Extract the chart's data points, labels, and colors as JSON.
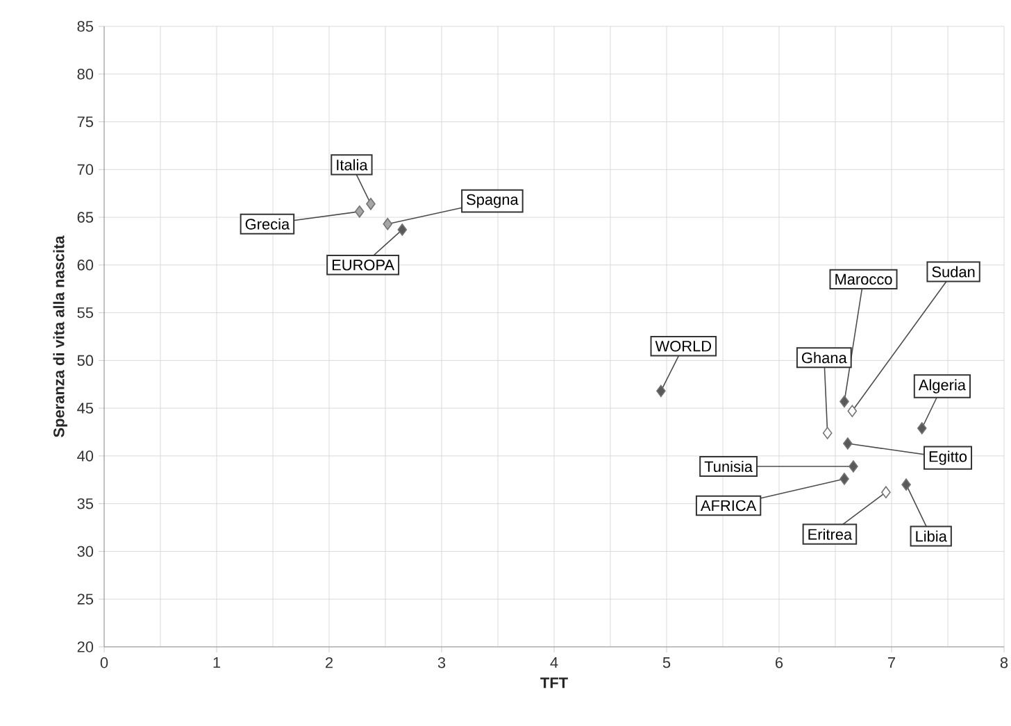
{
  "chart_data": {
    "type": "scatter",
    "xlabel": "TFT",
    "ylabel": "Speranza di vita alla nascita",
    "x": [
      2.37,
      2.27,
      2.52,
      2.65,
      4.95,
      6.58,
      6.65,
      6.43,
      7.27,
      6.61,
      6.66,
      6.58,
      6.95,
      7.13
    ],
    "values": [
      66.4,
      65.6,
      64.3,
      63.7,
      46.8,
      45.7,
      44.7,
      42.4,
      42.9,
      41.3,
      38.9,
      37.6,
      36.2,
      37.0
    ],
    "colors": [
      "#a6a6a6",
      "#a6a6a6",
      "#a6a6a6",
      "#595959",
      "#595959",
      "#595959",
      "#ffffff",
      "#ffffff",
      "#595959",
      "#595959",
      "#595959",
      "#595959",
      "#ffffff",
      "#595959"
    ],
    "marker": "diamond",
    "grid": true,
    "xlim": [
      0,
      8
    ],
    "xticks": [
      0,
      1,
      2,
      3,
      4,
      5,
      6,
      7,
      8
    ],
    "ylim": [
      20,
      85
    ],
    "yticks": [
      20,
      25,
      30,
      35,
      40,
      45,
      50,
      55,
      60,
      65,
      70,
      75,
      80,
      85
    ],
    "annotations": [
      {
        "text": "Italia",
        "x": 2.37,
        "y": 66.4
      },
      {
        "text": "Grecia",
        "x": 2.27,
        "y": 65.6
      },
      {
        "text": "Spagna",
        "x": 2.52,
        "y": 64.3
      },
      {
        "text": "EUROPA",
        "x": 2.65,
        "y": 63.7
      },
      {
        "text": "WORLD",
        "x": 4.95,
        "y": 46.8
      },
      {
        "text": "Marocco",
        "x": 6.58,
        "y": 45.7
      },
      {
        "text": "Sudan",
        "x": 6.65,
        "y": 44.7
      },
      {
        "text": "Ghana",
        "x": 6.43,
        "y": 42.4
      },
      {
        "text": "Algeria",
        "x": 7.27,
        "y": 42.9
      },
      {
        "text": "Egitto",
        "x": 6.61,
        "y": 41.3
      },
      {
        "text": "Tunisia",
        "x": 6.66,
        "y": 38.9
      },
      {
        "text": "AFRICA",
        "x": 6.58,
        "y": 37.6
      },
      {
        "text": "Eritrea",
        "x": 6.95,
        "y": 36.2
      },
      {
        "text": "Libia",
        "x": 7.13,
        "y": 37.0
      }
    ]
  }
}
